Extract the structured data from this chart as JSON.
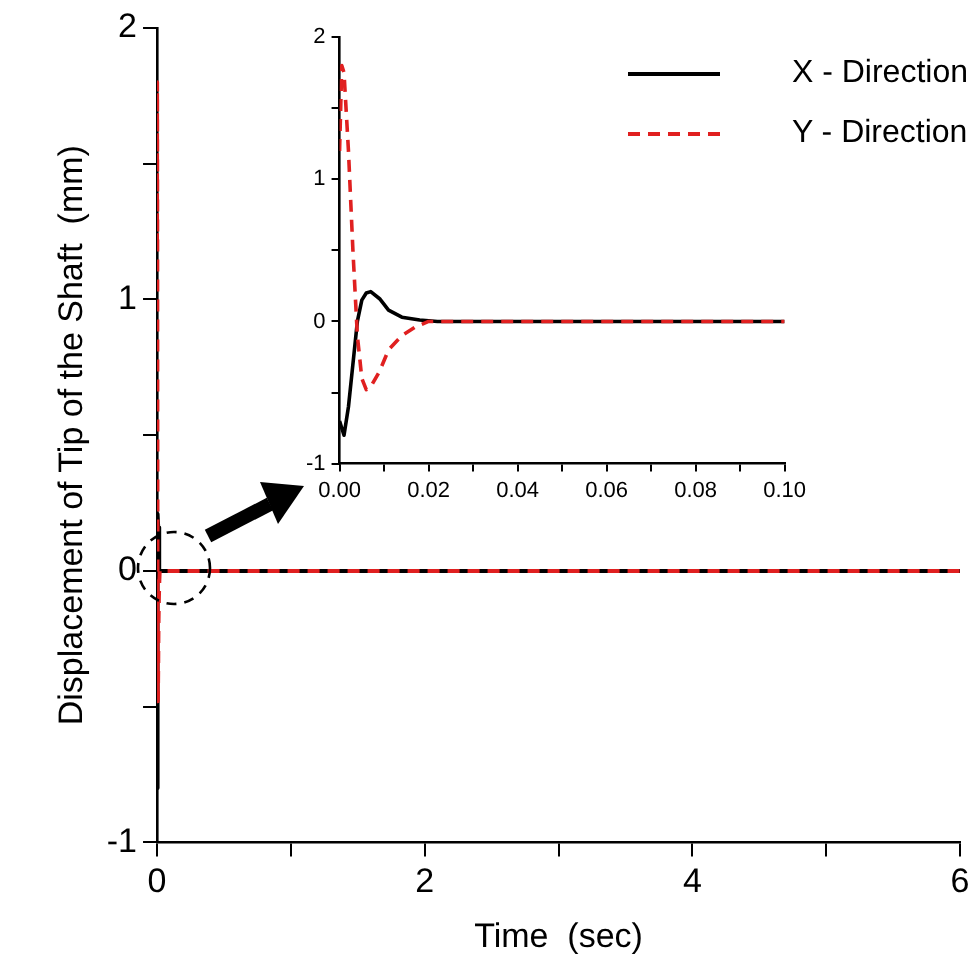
{
  "chart_data": [
    {
      "type": "line",
      "xlabel": "Time  (sec)",
      "ylabel": "Displacement of Tip of the Shaft  (mm)",
      "xlim": [
        0,
        6
      ],
      "ylim": [
        -1,
        2
      ],
      "xticks": [
        0,
        {
          "value": 1,
          "label": null
        },
        2,
        {
          "value": 3,
          "label": null
        },
        4,
        {
          "value": 5,
          "label": null
        },
        6
      ],
      "yticks": [
        -1,
        {
          "value": -0.5,
          "label": null
        },
        0,
        {
          "value": 0.5,
          "label": null
        },
        1,
        {
          "value": 1.5,
          "label": null
        },
        2
      ],
      "legend": "top right",
      "marker": "none",
      "series": [
        {
          "name": "X - Direction",
          "color": "#000000",
          "line_style": "solid",
          "x": [
            0,
            0.001,
            0.002,
            0.003,
            0.004,
            0.005,
            0.006,
            0.007,
            0.009,
            0.011,
            0.014,
            0.018,
            0.022,
            6
          ],
          "values": [
            -0.7,
            -0.8,
            -0.6,
            -0.3,
            0,
            0.15,
            0.2,
            0.21,
            0.16,
            0.08,
            0.03,
            0.01,
            0,
            0
          ]
        },
        {
          "name": "Y - Direction",
          "color": "#e02020",
          "line_style": "dashed",
          "x": [
            0,
            0.0005,
            0.001,
            0.002,
            0.003,
            0.004,
            0.005,
            0.006,
            0.007,
            0.009,
            0.011,
            0.014,
            0.017,
            0.02,
            6
          ],
          "values": [
            1.2,
            1.8,
            1.75,
            1.2,
            0.5,
            -0.1,
            -0.4,
            -0.48,
            -0.46,
            -0.35,
            -0.2,
            -0.1,
            -0.04,
            0,
            0
          ]
        }
      ]
    },
    {
      "type": "line",
      "xlim": [
        0,
        0.1
      ],
      "ylim": [
        -1,
        2
      ],
      "xticks": [
        {
          "value": 0,
          "label": "0.00"
        },
        {
          "value": 0.01,
          "label": null
        },
        {
          "value": 0.02,
          "label": "0.02"
        },
        {
          "value": 0.03,
          "label": null
        },
        {
          "value": 0.04,
          "label": "0.04"
        },
        {
          "value": 0.05,
          "label": null
        },
        {
          "value": 0.06,
          "label": "0.06"
        },
        {
          "value": 0.07,
          "label": null
        },
        {
          "value": 0.08,
          "label": "0.08"
        },
        {
          "value": 0.09,
          "label": null
        },
        {
          "value": 0.1,
          "label": "0.10"
        }
      ],
      "yticks": [
        -1,
        {
          "value": -0.5,
          "label": null
        },
        0,
        {
          "value": 0.5,
          "label": null
        },
        1,
        {
          "value": 1.5,
          "label": null
        },
        2
      ],
      "marker": "none",
      "series": [
        {
          "color": "#000000",
          "line_style": "solid",
          "x": [
            0,
            0.001,
            0.002,
            0.003,
            0.004,
            0.005,
            0.006,
            0.007,
            0.009,
            0.011,
            0.014,
            0.018,
            0.022,
            0.1
          ],
          "values": [
            -0.7,
            -0.8,
            -0.6,
            -0.3,
            0,
            0.15,
            0.2,
            0.21,
            0.16,
            0.08,
            0.03,
            0.01,
            0,
            0
          ]
        },
        {
          "color": "#e02020",
          "line_style": "dashed",
          "x": [
            0,
            0.0005,
            0.001,
            0.002,
            0.003,
            0.004,
            0.005,
            0.006,
            0.007,
            0.009,
            0.011,
            0.014,
            0.017,
            0.02,
            0.1
          ],
          "values": [
            1.2,
            1.8,
            1.75,
            1.2,
            0.5,
            -0.1,
            -0.4,
            -0.48,
            -0.46,
            -0.35,
            -0.2,
            -0.1,
            -0.04,
            0,
            0
          ]
        }
      ]
    }
  ]
}
